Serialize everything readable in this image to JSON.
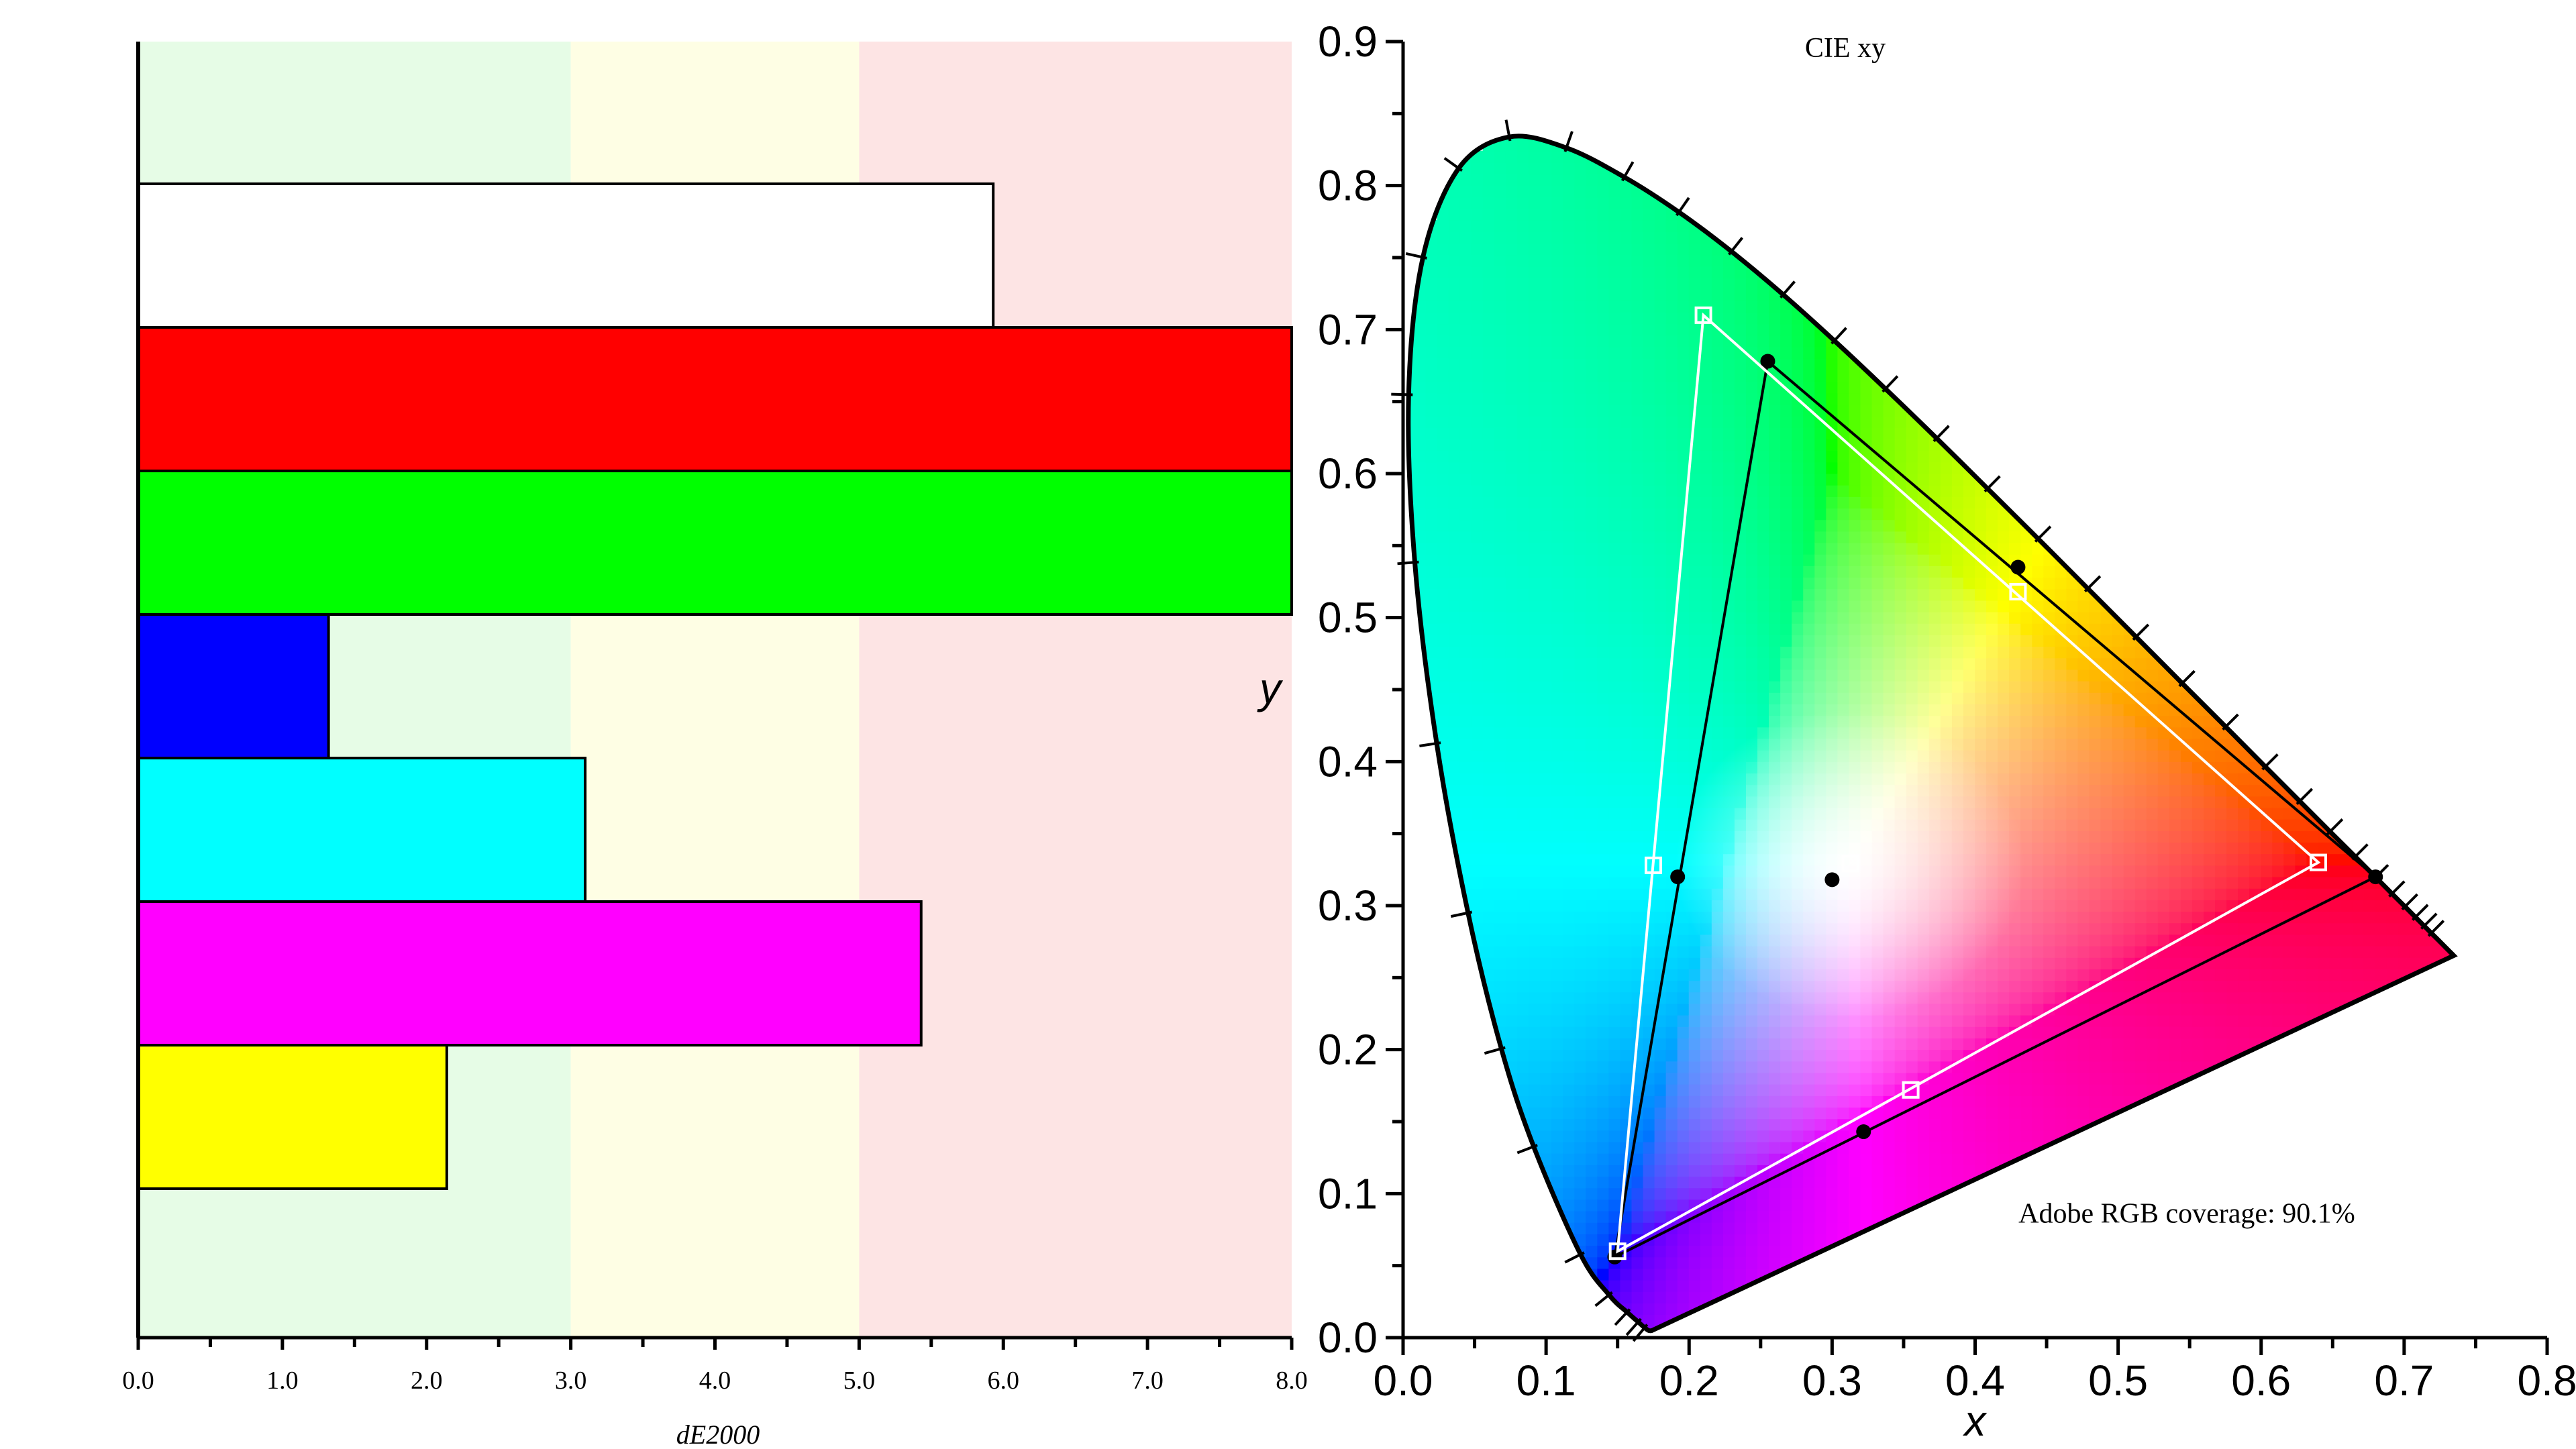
{
  "chart_data": [
    {
      "type": "bar",
      "orientation": "horizontal",
      "xlabel": "dE2000",
      "xlim": [
        0,
        8
      ],
      "xticks": [
        "0.0",
        "1.0",
        "2.0",
        "3.0",
        "4.0",
        "5.0",
        "6.0",
        "7.0",
        "8.0"
      ],
      "zones": [
        {
          "from": 0,
          "to": 3,
          "color": "#e6fce6"
        },
        {
          "from": 3,
          "to": 5,
          "color": "#fefee4"
        },
        {
          "from": 5,
          "to": 8,
          "color": "#fde4e4"
        }
      ],
      "bars": [
        {
          "color": "#ffffff",
          "value": 5.93
        },
        {
          "color": "#ff0000",
          "value": 8.0
        },
        {
          "color": "#00ff00",
          "value": 8.0
        },
        {
          "color": "#0000ff",
          "value": 1.32
        },
        {
          "color": "#00ffff",
          "value": 3.1
        },
        {
          "color": "#ff00ff",
          "value": 5.43
        },
        {
          "color": "#ffff00",
          "value": 2.14
        }
      ]
    },
    {
      "type": "scatter",
      "title": "CIE xy",
      "xlabel": "x",
      "ylabel": "y",
      "xlim": [
        0,
        0.8
      ],
      "ylim": [
        0,
        0.9
      ],
      "xticks": [
        "0.0",
        "0.1",
        "0.2",
        "0.3",
        "0.4",
        "0.5",
        "0.6",
        "0.7",
        "0.8"
      ],
      "yticks": [
        "0.0",
        "0.1",
        "0.2",
        "0.3",
        "0.4",
        "0.5",
        "0.6",
        "0.7",
        "0.8",
        "0.9"
      ],
      "annotation": "Adobe RGB coverage: 90.1%",
      "spectral_locus": [
        [
          0.1741,
          0.005
        ],
        [
          0.1738,
          0.0049
        ],
        [
          0.1733,
          0.0048
        ],
        [
          0.1726,
          0.0048
        ],
        [
          0.1714,
          0.0051
        ],
        [
          0.1689,
          0.0069
        ],
        [
          0.1644,
          0.0109
        ],
        [
          0.1566,
          0.0177
        ],
        [
          0.144,
          0.0297
        ],
        [
          0.1241,
          0.0578
        ],
        [
          0.0913,
          0.1327
        ],
        [
          0.0687,
          0.2007
        ],
        [
          0.0454,
          0.295
        ],
        [
          0.0235,
          0.4127
        ],
        [
          0.0082,
          0.5384
        ],
        [
          0.0039,
          0.6548
        ],
        [
          0.0139,
          0.7502
        ],
        [
          0.0389,
          0.812
        ],
        [
          0.0743,
          0.8338
        ],
        [
          0.1142,
          0.8262
        ],
        [
          0.1547,
          0.8059
        ],
        [
          0.1929,
          0.7816
        ],
        [
          0.2296,
          0.7543
        ],
        [
          0.2658,
          0.7243
        ],
        [
          0.3016,
          0.6923
        ],
        [
          0.3373,
          0.6589
        ],
        [
          0.3731,
          0.6245
        ],
        [
          0.4087,
          0.5896
        ],
        [
          0.4441,
          0.5547
        ],
        [
          0.4788,
          0.5202
        ],
        [
          0.5125,
          0.4866
        ],
        [
          0.5448,
          0.4544
        ],
        [
          0.5752,
          0.4242
        ],
        [
          0.6029,
          0.3965
        ],
        [
          0.627,
          0.3725
        ],
        [
          0.6482,
          0.3514
        ],
        [
          0.6658,
          0.334
        ],
        [
          0.6801,
          0.3197
        ],
        [
          0.6915,
          0.3083
        ],
        [
          0.7006,
          0.2993
        ],
        [
          0.7079,
          0.292
        ],
        [
          0.714,
          0.2859
        ],
        [
          0.719,
          0.2809
        ],
        [
          0.723,
          0.277
        ],
        [
          0.726,
          0.274
        ],
        [
          0.7283,
          0.2717
        ],
        [
          0.73,
          0.27
        ],
        [
          0.7311,
          0.2689
        ],
        [
          0.732,
          0.268
        ],
        [
          0.7327,
          0.2673
        ],
        [
          0.7334,
          0.2666
        ],
        [
          0.734,
          0.266
        ],
        [
          0.7344,
          0.2656
        ],
        [
          0.7346,
          0.2654
        ],
        [
          0.7347,
          0.2653
        ]
      ],
      "series": [
        {
          "name": "",
          "marker": "filled-circle",
          "color": "#000000",
          "closed": true,
          "points": [
            [
              0.68,
              0.32
            ],
            [
              0.255,
              0.678
            ],
            [
              0.148,
              0.056
            ]
          ],
          "extra_points": [
            [
              0.43,
              0.535
            ],
            [
              0.322,
              0.143
            ],
            [
              0.192,
              0.32
            ]
          ],
          "white_point": [
            0.3,
            0.318
          ]
        },
        {
          "name": "",
          "marker": "open-square",
          "color": "#ffffff",
          "closed": true,
          "points": [
            [
              0.64,
              0.33
            ],
            [
              0.21,
              0.71
            ],
            [
              0.15,
              0.06
            ]
          ],
          "extra_points": [
            [
              0.43,
              0.518
            ],
            [
              0.355,
              0.172
            ],
            [
              0.175,
              0.328
            ]
          ],
          "white_point": [
            0.3127,
            0.329
          ]
        }
      ]
    }
  ]
}
